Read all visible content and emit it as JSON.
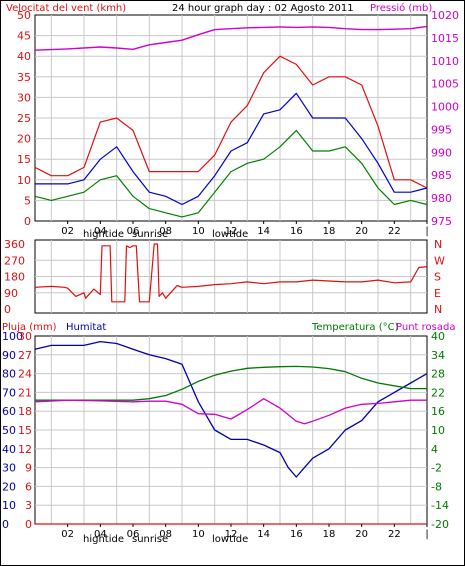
{
  "header": {
    "left": "Velocitat del vent (kmh)",
    "center": "24 hour graph day : 02 Agosto 2011",
    "right": "Pressió (mb)"
  },
  "colors": {
    "wind": "#e01010",
    "wind_avg": "#0000cc",
    "gust_low": "#008000",
    "pressure": "#d000d0",
    "direction": "#e01010",
    "humidity": "#0000aa",
    "temperature": "#007a00",
    "dewpoint": "#d000d0",
    "rain": "#e01010"
  },
  "panel1": {
    "left_ticks": [
      "50",
      "45",
      "40",
      "35",
      "30",
      "25",
      "20",
      "15",
      "10",
      "5",
      "0"
    ],
    "right_ticks": [
      "1020",
      "1015",
      "1010",
      "1005",
      "1000",
      "995",
      "990",
      "985",
      "980",
      "975"
    ],
    "x_ticks": [
      "02",
      "04",
      "06",
      "08",
      "10",
      "12",
      "14",
      "16",
      "18",
      "20",
      "22",
      "|"
    ],
    "x_labels": [
      {
        "text": "hightide"
      },
      {
        "text": "sunrise"
      },
      {
        "text": "lowtide"
      }
    ]
  },
  "panel2": {
    "left_ticks": [
      "360",
      "270",
      "180",
      "90",
      "0"
    ],
    "right_labels": [
      "N",
      "W",
      "S",
      "E",
      "N"
    ]
  },
  "panel3": {
    "title_rain": "Pluja (mm)",
    "title_hum": "Humitat",
    "title_temp": "Temperatura (°C)",
    "title_dew": "Punt rosada",
    "hum_ticks": [
      "100",
      "90",
      "80",
      "70",
      "60",
      "50",
      "40",
      "30",
      "20",
      "10",
      "0"
    ],
    "rain_ticks": [
      "30",
      "27",
      "24",
      "21",
      "18",
      "15",
      "12",
      "9",
      "6",
      "3",
      "0"
    ],
    "temp_ticks": [
      "40",
      "34",
      "28",
      "22",
      "16",
      "10",
      "4",
      "-2",
      "-8",
      "-14",
      "-20"
    ],
    "x_ticks": [
      "02",
      "04",
      "06",
      "08",
      "10",
      "12",
      "14",
      "16",
      "18",
      "20",
      "22",
      "|"
    ],
    "x_labels": [
      {
        "text": "hightide"
      },
      {
        "text": "sunrise"
      },
      {
        "text": "lowtide"
      }
    ]
  },
  "chart_data": [
    {
      "type": "line",
      "xlabel": "",
      "ylabel": "Velocitat del vent (kmh)",
      "y2label": "Pressió (mb)",
      "xlim": [
        0,
        24
      ],
      "ylim": [
        0,
        50
      ],
      "y2lim": [
        975,
        1020
      ],
      "series": [
        {
          "name": "Velocitat del vent (kmh)",
          "axis": "left",
          "x": [
            0,
            1,
            2,
            3,
            4,
            5,
            6,
            7,
            8,
            9,
            10,
            11,
            12,
            13,
            14,
            15,
            16,
            17,
            18,
            19,
            20,
            21,
            22,
            23,
            24
          ],
          "values": [
            13,
            11,
            11,
            13,
            24,
            25,
            22,
            12,
            12,
            12,
            12,
            16,
            24,
            28,
            36,
            40,
            38,
            33,
            35,
            35,
            33,
            23,
            10,
            10,
            8
          ]
        },
        {
          "name": "Wind average",
          "axis": "left",
          "x": [
            0,
            1,
            2,
            3,
            4,
            5,
            6,
            7,
            8,
            9,
            10,
            11,
            12,
            13,
            14,
            15,
            16,
            17,
            18,
            19,
            20,
            21,
            22,
            23,
            24
          ],
          "values": [
            9,
            9,
            9,
            10,
            15,
            18,
            12,
            7,
            6,
            4,
            6,
            11,
            17,
            19,
            26,
            27,
            31,
            25,
            25,
            25,
            20,
            14,
            7,
            7,
            8
          ]
        },
        {
          "name": "Wind minimum",
          "axis": "left",
          "x": [
            0,
            1,
            2,
            3,
            4,
            5,
            6,
            7,
            8,
            9,
            10,
            11,
            12,
            13,
            14,
            15,
            16,
            17,
            18,
            19,
            20,
            21,
            22,
            23,
            24
          ],
          "values": [
            6,
            5,
            6,
            7,
            10,
            11,
            6,
            3,
            2,
            1,
            2,
            7,
            12,
            14,
            15,
            18,
            22,
            17,
            17,
            18,
            14,
            8,
            4,
            5,
            4
          ]
        },
        {
          "name": "Pressió (mb)",
          "axis": "right",
          "x": [
            0,
            2,
            4,
            5,
            6,
            7,
            8,
            9,
            10,
            11,
            12,
            13,
            14,
            15,
            16,
            17,
            18,
            19,
            20,
            21,
            22,
            23,
            24
          ],
          "values": [
            1012.3,
            1012.6,
            1013,
            1012.8,
            1012.5,
            1013.5,
            1014,
            1014.5,
            1015.7,
            1016.8,
            1017,
            1017.2,
            1017.3,
            1017.4,
            1017.3,
            1017.4,
            1017.3,
            1017,
            1016.8,
            1016.8,
            1016.9,
            1017,
            1017.5
          ]
        }
      ]
    },
    {
      "type": "line",
      "ylabel": "Direction",
      "ylim": [
        0,
        360
      ],
      "series": [
        {
          "name": "Direction",
          "x": [
            0,
            1,
            1.8,
            2,
            2.5,
            3,
            3.1,
            3.6,
            4,
            4.1,
            4.6,
            4.7,
            5.5,
            5.6,
            5.8,
            6,
            6.2,
            6.4,
            7,
            7.3,
            7.5,
            7.6,
            7.8,
            8,
            8.6,
            8.7,
            9,
            10,
            11,
            12,
            13,
            14,
            15,
            16,
            17,
            18,
            19,
            20,
            21,
            22,
            23,
            23.5,
            24
          ],
          "values": [
            120,
            125,
            120,
            115,
            70,
            90,
            60,
            110,
            80,
            350,
            350,
            40,
            40,
            350,
            340,
            350,
            350,
            40,
            40,
            360,
            360,
            70,
            90,
            60,
            120,
            130,
            120,
            125,
            135,
            140,
            150,
            140,
            150,
            150,
            160,
            155,
            150,
            150,
            160,
            145,
            150,
            230,
            235
          ]
        }
      ]
    },
    {
      "type": "line",
      "series": [
        {
          "name": "Humitat",
          "axis": "humidity",
          "x": [
            0,
            1,
            2,
            3,
            4,
            5,
            6,
            7,
            8,
            9,
            10,
            11,
            12,
            13,
            14,
            15,
            15.5,
            16,
            16.5,
            17,
            18,
            19,
            20,
            21,
            22,
            23,
            24
          ],
          "values": [
            93,
            95,
            95,
            95,
            97,
            96,
            93,
            90,
            88,
            85,
            65,
            50,
            45,
            45,
            42,
            38,
            30,
            25,
            30,
            35,
            40,
            50,
            55,
            65,
            70,
            75,
            80
          ]
        },
        {
          "name": "Temperatura (°C)",
          "axis": "temperature",
          "x": [
            0,
            2,
            4,
            6,
            7,
            8,
            9,
            10,
            11,
            12,
            13,
            14,
            15,
            16,
            17,
            18,
            19,
            20,
            21,
            22,
            23,
            24
          ],
          "values": [
            19.5,
            19.5,
            19.5,
            19.5,
            20,
            21,
            23,
            25.5,
            27.5,
            28.8,
            29.7,
            30,
            30.2,
            30.3,
            30.1,
            29.6,
            28.6,
            26.5,
            25,
            24.1,
            23.2,
            23.2
          ]
        },
        {
          "name": "Punt rosada",
          "axis": "temperature",
          "x": [
            0,
            2,
            4,
            6,
            7,
            8,
            9,
            10,
            11,
            12,
            13,
            14,
            15,
            16,
            16.5,
            17,
            18,
            19,
            20,
            21,
            22,
            23,
            24
          ],
          "values": [
            19,
            19.5,
            19.3,
            19,
            19.2,
            19.2,
            18.2,
            15.2,
            15,
            13.5,
            16.5,
            20,
            17,
            12.8,
            12,
            12.8,
            14.7,
            17,
            18.2,
            18.5,
            19,
            19.5,
            19.5
          ]
        },
        {
          "name": "Pluja (mm)",
          "axis": "rain",
          "x": [
            0,
            24
          ],
          "values": [
            0,
            0
          ]
        }
      ]
    }
  ]
}
